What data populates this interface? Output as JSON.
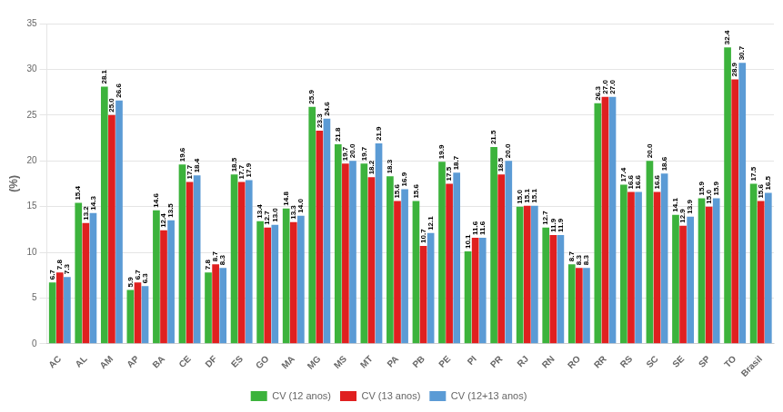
{
  "chart_data": {
    "type": "bar",
    "ylabel": "(%)",
    "categories": [
      "AC",
      "AL",
      "AM",
      "AP",
      "BA",
      "CE",
      "DF",
      "ES",
      "GO",
      "MA",
      "MG",
      "MS",
      "MT",
      "PA",
      "PB",
      "PE",
      "PI",
      "PR",
      "RJ",
      "RN",
      "RO",
      "RR",
      "RS",
      "SC",
      "SE",
      "SP",
      "TO",
      "Brasil"
    ],
    "series": [
      {
        "name": "CV (12 anos)",
        "color": "#3cb33c",
        "values": [
          6.7,
          15.4,
          28.1,
          5.9,
          14.6,
          19.6,
          7.8,
          18.5,
          13.4,
          14.8,
          25.9,
          21.8,
          19.7,
          18.3,
          15.6,
          19.9,
          10.1,
          21.5,
          15.0,
          12.7,
          8.7,
          26.3,
          17.4,
          20.0,
          14.1,
          15.9,
          32.4,
          17.5
        ],
        "value_labels": [
          "6.7",
          "15.4",
          "28.1",
          "5.9",
          "14.6",
          "19.6",
          "7.8",
          "18.5",
          "13.4",
          "14.8",
          "25.9",
          "21.8",
          "19.7",
          "18.3",
          "15.6",
          "19.9",
          "10.1",
          "21.5",
          "15.0",
          "12.7",
          "8.7",
          "26.3",
          "17.4",
          "20.0",
          "14.1",
          "15.9",
          "32.4",
          "17.5"
        ]
      },
      {
        "name": "CV (13 anos)",
        "color": "#e02020",
        "values": [
          7.8,
          13.2,
          25.0,
          6.7,
          12.4,
          17.7,
          8.7,
          17.7,
          12.7,
          13.3,
          23.3,
          19.7,
          18.2,
          15.6,
          10.7,
          17.5,
          11.6,
          18.5,
          15.1,
          11.9,
          8.3,
          27.0,
          16.6,
          16.6,
          12.9,
          15.0,
          28.9,
          15.6
        ],
        "value_labels": [
          "7.8",
          "13.2",
          "25.0",
          "6.7",
          "12.4",
          "17.7",
          "8.7",
          "17.7",
          "12.7",
          "13.3",
          "23.3",
          "19.7",
          "18.2",
          "15.6",
          "10.7",
          "17.5",
          "11.6",
          "18.5",
          "15.1",
          "11.9",
          "8.3",
          "27.0",
          "16.6",
          "16.6",
          "12.9",
          "15.0",
          "28.9",
          "15.6"
        ]
      },
      {
        "name": "CV (12+13 anos)",
        "color": "#5b9bd5",
        "values": [
          7.3,
          14.3,
          26.6,
          6.3,
          13.5,
          18.4,
          8.3,
          17.9,
          13.0,
          14.0,
          24.6,
          20.0,
          21.9,
          16.9,
          12.1,
          18.7,
          11.6,
          20.0,
          15.1,
          11.9,
          8.3,
          27.0,
          16.6,
          18.6,
          13.9,
          15.9,
          30.7,
          16.5
        ],
        "value_labels": [
          "7.3",
          "14.3",
          "26.6",
          "6.3",
          "13.5",
          "18.4",
          "8.3",
          "17.9",
          "13.0",
          "14.0",
          "24.6",
          "20.0",
          "21.9",
          "16.9",
          "12.1",
          "18.7",
          "11.6",
          "20.0",
          "15.1",
          "11.9",
          "8.3",
          "27.0",
          "16.6",
          "18.6",
          "13.9",
          "15.9",
          "30.7",
          "16.5"
        ]
      }
    ],
    "ylim": [
      0,
      35
    ],
    "yticks": [
      0,
      5,
      10,
      15,
      20,
      25,
      30,
      35
    ],
    "grid": true,
    "legend": "bottom",
    "data_labels": true
  }
}
